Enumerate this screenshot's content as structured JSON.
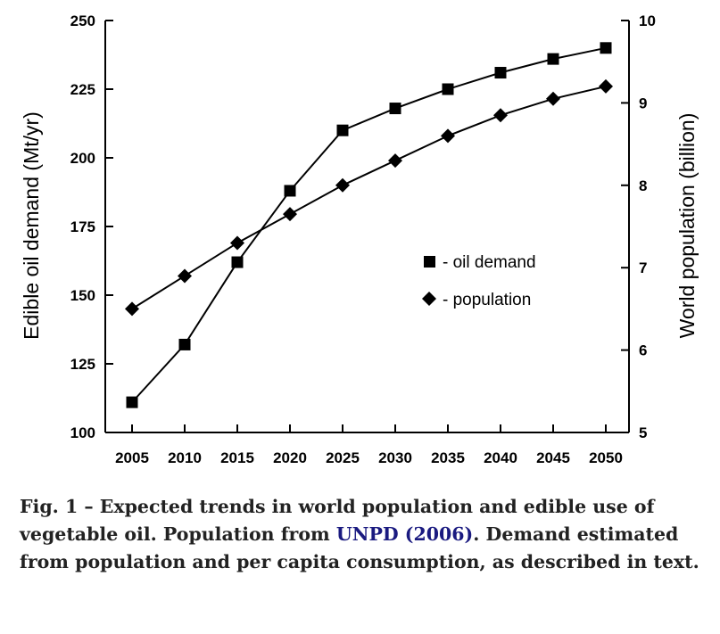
{
  "chart_data": {
    "type": "line",
    "title": "",
    "x": [
      2005,
      2010,
      2015,
      2020,
      2025,
      2030,
      2035,
      2040,
      2045,
      2050
    ],
    "xlabel": "",
    "ylabel": "Edible oil demand (Mt/yr)",
    "ylim": [
      100,
      250
    ],
    "yticks": [
      100,
      125,
      150,
      175,
      200,
      225,
      250
    ],
    "y2label": "World population (billion)",
    "y2lim": [
      5,
      10
    ],
    "y2ticks": [
      5,
      6,
      7,
      8,
      9,
      10
    ],
    "grid": false,
    "legend_position": "center-right",
    "series": [
      {
        "name": "- oil demand",
        "marker": "square",
        "axis": "left",
        "values": [
          111,
          132,
          162,
          188,
          210,
          218,
          225,
          231,
          236,
          240
        ]
      },
      {
        "name": "- population",
        "marker": "diamond",
        "axis": "right",
        "values": [
          6.5,
          6.9,
          7.3,
          7.65,
          8.0,
          8.3,
          8.6,
          8.85,
          9.05,
          9.2
        ]
      }
    ]
  },
  "caption": {
    "part1": "Fig. 1 – Expected trends in world population and edible use of vegetable oil. Population from ",
    "link": "UNPD (2006)",
    "part2": ". Demand estimated from population and per capita consumption, as described in text."
  }
}
